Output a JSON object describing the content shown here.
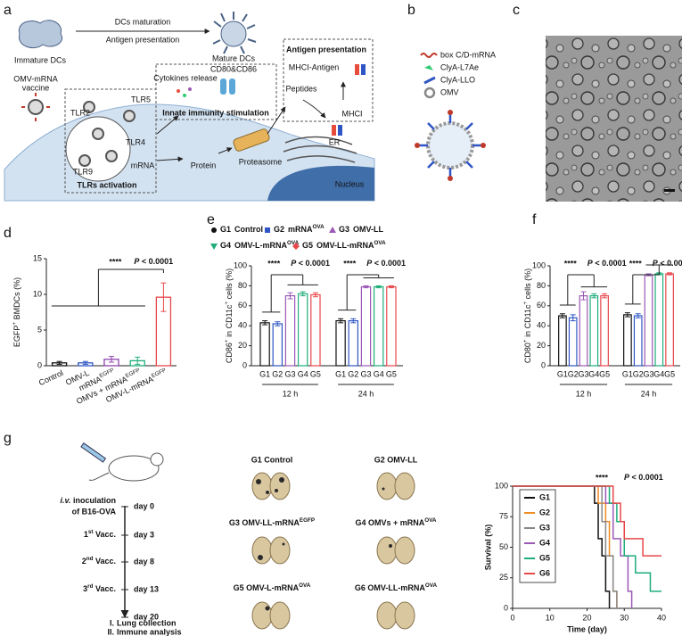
{
  "panel_labels": [
    "a",
    "b",
    "c",
    "d",
    "e",
    "f",
    "g"
  ],
  "panel_a": {
    "immature_dcs": "Immature DCs",
    "maturation": "DCs maturation",
    "antigen_presentation": "Antigen presentation",
    "mature_dcs": "Mature DCs",
    "vaccine_line1": "OMV-mRNA",
    "vaccine_line2": "vaccine",
    "cytokines": "Cytokines release",
    "cd80_cd86": "CD80&CD86",
    "innate": "Innate immunity stimulation",
    "tlr5": "TLR5",
    "tlr2": "TLR2",
    "tlr4": "TLR4",
    "tlr9": "TLR9",
    "mrna": "mRNA",
    "tlrs_activation": "TLRs activation",
    "protein": "Protein",
    "proteasome": "Proteasome",
    "peptides": "Peptides",
    "antigen_presentation_box": "Antigen presentation",
    "mhci_antigen": "MHCI-Antigen",
    "mhci": "MHCI",
    "er": "ER",
    "nucleus": "Nucleus"
  },
  "panel_b": {
    "legend": [
      "box C/D-mRNA",
      "ClyA-L7Ae",
      "ClyA-LLO",
      "OMV"
    ]
  },
  "chart_data": [
    {
      "type": "bar",
      "y_label": [
        "EGFP",
        {
          "sup": "+"
        },
        " BMDCs (%)"
      ],
      "categories": [
        "Control",
        "OMV-L",
        [
          "mRNA",
          {
            "sup": "EGFP"
          }
        ],
        [
          "OMVs + mRNA",
          {
            "sup": "EGFP"
          }
        ],
        [
          "OMV-L-mRNA",
          {
            "sup": "EGFP"
          }
        ]
      ],
      "values": [
        0.4,
        0.4,
        0.9,
        0.7,
        9.6
      ],
      "errors": [
        0.2,
        0.2,
        0.4,
        0.5,
        2.0
      ],
      "colors": [
        "#111111",
        "#2f56c4",
        "#8e44ad",
        "#1fae7a",
        "#e8474a"
      ],
      "ylim": [
        0,
        15
      ],
      "yticks": [
        0,
        5,
        10,
        15
      ],
      "annotation": {
        "stars": "****",
        "p": [
          {
            "italic": "P"
          },
          " < 0.0001"
        ]
      }
    },
    {
      "type": "grouped_bar",
      "y_label": [
        "CD86",
        {
          "sup": "+"
        },
        " in CD11c",
        {
          "sup": "+"
        },
        " cells (%)"
      ],
      "groups": [
        "12 h",
        "24 h"
      ],
      "series": [
        {
          "id": "G1",
          "name": "Control",
          "marker": "circle",
          "color": "#111111",
          "values": [
            43,
            45
          ],
          "errors": [
            2,
            2
          ]
        },
        {
          "id": "G2",
          "name": [
            "mRNA",
            {
              "sup": "OVA"
            }
          ],
          "marker": "square",
          "color": "#2f56c4",
          "values": [
            42,
            45
          ],
          "errors": [
            2,
            2
          ]
        },
        {
          "id": "G3",
          "name": "OMV-LL",
          "marker": "triangle-up",
          "color": "#9b59b6",
          "values": [
            70,
            79
          ],
          "errors": [
            3,
            1
          ]
        },
        {
          "id": "G4",
          "name": [
            "OMV-L-mRNA",
            {
              "sup": "OVA"
            }
          ],
          "marker": "triangle-down",
          "color": "#1fae7a",
          "values": [
            72,
            79
          ],
          "errors": [
            2,
            1
          ]
        },
        {
          "id": "G5",
          "name": [
            "OMV-LL-mRNA",
            {
              "sup": "OVA"
            }
          ],
          "marker": "diamond",
          "color": "#e8474a",
          "values": [
            71,
            79
          ],
          "errors": [
            2,
            1
          ]
        }
      ],
      "ylim": [
        0,
        100
      ],
      "yticks": [
        0,
        20,
        40,
        60,
        80,
        100
      ],
      "annotations": [
        {
          "stars": "****",
          "p": [
            {
              "italic": "P"
            },
            " < 0.0001"
          ]
        },
        {
          "stars": "****",
          "p": [
            {
              "italic": "P"
            },
            " < 0.0001"
          ]
        }
      ]
    },
    {
      "type": "grouped_bar",
      "y_label": [
        "CD80",
        {
          "sup": "+"
        },
        " in CD11c",
        {
          "sup": "+"
        },
        " cells (%)"
      ],
      "groups": [
        "12 h",
        "24 h"
      ],
      "series": [
        {
          "id": "G1",
          "color": "#111111",
          "values": [
            50,
            51
          ],
          "errors": [
            2,
            2
          ]
        },
        {
          "id": "G2",
          "color": "#2f56c4",
          "values": [
            48,
            50
          ],
          "errors": [
            3,
            2
          ]
        },
        {
          "id": "G3",
          "color": "#9b59b6",
          "values": [
            70,
            91
          ],
          "errors": [
            4,
            1
          ]
        },
        {
          "id": "G4",
          "color": "#1fae7a",
          "values": [
            70,
            92
          ],
          "errors": [
            2,
            1
          ]
        },
        {
          "id": "G5",
          "color": "#e8474a",
          "values": [
            70,
            92
          ],
          "errors": [
            2,
            1
          ]
        }
      ],
      "ylim": [
        0,
        100
      ],
      "yticks": [
        0,
        20,
        40,
        60,
        80,
        100
      ],
      "annotations": [
        {
          "stars": "****",
          "p": [
            {
              "italic": "P"
            },
            " < 0.0001"
          ]
        },
        {
          "stars": "****",
          "p": [
            {
              "italic": "P"
            },
            " < 0.0001"
          ]
        }
      ]
    },
    {
      "type": "step",
      "x_label": "Time (day)",
      "y_label": "Survival (%)",
      "series": [
        {
          "name": "G1",
          "color": "#111111",
          "x": [
            0,
            22,
            23,
            24,
            25,
            26
          ],
          "values": [
            100,
            86,
            57,
            43,
            14,
            0
          ]
        },
        {
          "name": "G2",
          "color": "#f08a24",
          "x": [
            0,
            23,
            25,
            26,
            27,
            28
          ],
          "values": [
            100,
            86,
            71,
            43,
            14,
            0
          ]
        },
        {
          "name": "G3",
          "color": "#888888",
          "x": [
            0,
            24,
            25,
            27,
            28
          ],
          "values": [
            100,
            71,
            43,
            14,
            0
          ]
        },
        {
          "name": "G4",
          "color": "#9b59b6",
          "x": [
            0,
            25,
            27,
            29,
            31,
            32
          ],
          "values": [
            100,
            86,
            57,
            43,
            14,
            0
          ]
        },
        {
          "name": "G5",
          "color": "#1fae7a",
          "x": [
            0,
            26,
            28,
            30,
            33,
            37,
            40
          ],
          "values": [
            100,
            86,
            71,
            43,
            29,
            14,
            14
          ]
        },
        {
          "name": "G6",
          "color": "#e8474a",
          "x": [
            0,
            27,
            29,
            30,
            35,
            37,
            40
          ],
          "values": [
            100,
            86,
            71,
            57,
            43,
            43,
            43
          ]
        }
      ],
      "xlim": [
        0,
        40
      ],
      "xticks": [
        0,
        10,
        20,
        30,
        40
      ],
      "ylim": [
        0,
        100
      ],
      "yticks": [
        0,
        25,
        50,
        75,
        100
      ],
      "annotation": {
        "stars": "****",
        "p": [
          {
            "italic": "P"
          },
          " < 0.0001"
        ]
      }
    }
  ],
  "panel_g": {
    "timeline": [
      {
        "label": [
          {
            "italic": "i.v."
          },
          " inoculation"
        ],
        "label_line2": "of B16-OVA",
        "day": "day 0"
      },
      {
        "label": [
          "1",
          {
            "sup": "st"
          },
          " Vacc."
        ],
        "day": "day 3"
      },
      {
        "label": [
          "2",
          {
            "sup": "nd"
          },
          " Vacc."
        ],
        "day": "day 8"
      },
      {
        "label": [
          "3",
          {
            "sup": "rd"
          },
          " Vacc."
        ],
        "day": "day 13"
      },
      {
        "day": "day 20"
      }
    ],
    "outcomes": [
      {
        "numeral": "I.",
        "text": "Lung collection"
      },
      {
        "numeral": "II.",
        "text": "Immune analysis"
      }
    ],
    "lungs": [
      "G1 Control",
      "G2 OMV-LL",
      [
        "G3 OMV-LL-mRNA",
        {
          "sup": "EGFP"
        }
      ],
      [
        "G4 OMVs + mRNA",
        {
          "sup": "OVA"
        }
      ],
      [
        "G5 OMV-L-mRNA",
        {
          "sup": "OVA"
        }
      ],
      [
        "G6 OMV-LL-mRNA",
        {
          "sup": "OVA"
        }
      ]
    ]
  }
}
